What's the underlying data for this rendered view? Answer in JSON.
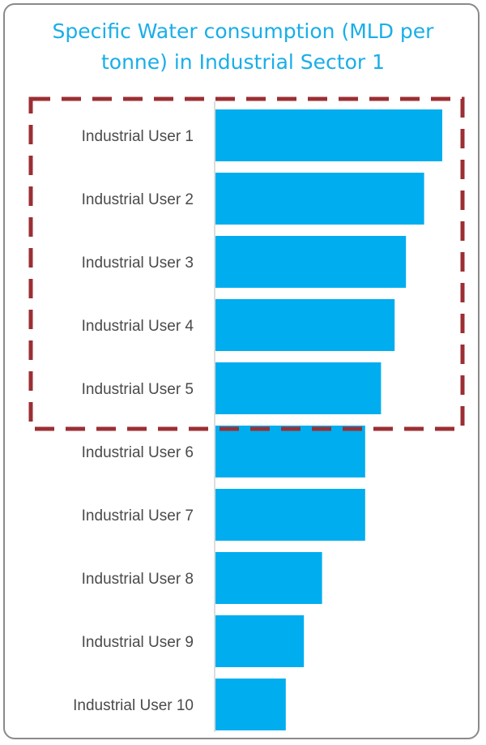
{
  "chart_data": {
    "type": "bar",
    "orientation": "horizontal",
    "title": "Specific Water consumption (MLD per tonne) in Industrial Sector 1",
    "categories": [
      "Industrial User 1",
      "Industrial User 2",
      "Industrial User 3",
      "Industrial User 4",
      "Industrial User 5",
      "Industrial User 6",
      "Industrial User 7",
      "Industrial User 8",
      "Industrial User 9",
      "Industrial User 10"
    ],
    "values": [
      100,
      92,
      84,
      79,
      73,
      66,
      66,
      47,
      39,
      31
    ],
    "xlim": [
      0,
      100
    ],
    "grid": false,
    "axis_ticks_shown": false,
    "highlight_group": {
      "categories": [
        "Industrial User 1",
        "Industrial User 2",
        "Industrial User 3",
        "Industrial User 4",
        "Industrial User 5"
      ],
      "style": "dashed-box"
    }
  },
  "colors": {
    "bar": "#00adef",
    "title": "#19aee8",
    "highlight_box": "#9b2f33",
    "axis": "#d0d0d0",
    "label": "#4a4a4a",
    "card_border": "#8a8a8a"
  }
}
